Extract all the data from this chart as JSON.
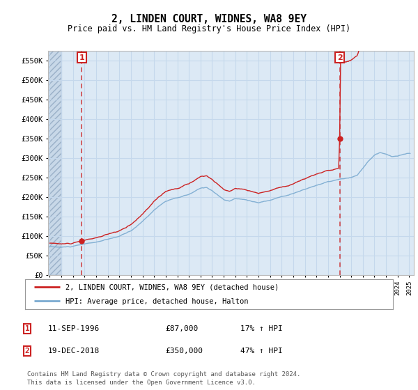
{
  "title": "2, LINDEN COURT, WIDNES, WA8 9EY",
  "subtitle": "Price paid vs. HM Land Registry's House Price Index (HPI)",
  "background_color": "#ffffff",
  "plot_bg_color": "#dce9f5",
  "grid_color": "#c5d8ec",
  "property_color": "#cc2222",
  "hpi_color": "#7aaad0",
  "point1_year": 1996.75,
  "point1_price": 87000,
  "point2_year": 2019.0,
  "point2_price": 350000,
  "ylim": [
    0,
    575000
  ],
  "yticks": [
    0,
    50000,
    100000,
    150000,
    200000,
    250000,
    300000,
    350000,
    400000,
    450000,
    500000,
    550000
  ],
  "ytick_labels": [
    "£0",
    "£50K",
    "£100K",
    "£150K",
    "£200K",
    "£250K",
    "£300K",
    "£350K",
    "£400K",
    "£450K",
    "£500K",
    "£550K"
  ],
  "legend_line1": "2, LINDEN COURT, WIDNES, WA8 9EY (detached house)",
  "legend_line2": "HPI: Average price, detached house, Halton",
  "footer1": "Contains HM Land Registry data © Crown copyright and database right 2024.",
  "footer2": "This data is licensed under the Open Government Licence v3.0.",
  "table_row1": [
    "1",
    "11-SEP-1996",
    "£87,000",
    "17% ↑ HPI"
  ],
  "table_row2": [
    "2",
    "19-DEC-2018",
    "£350,000",
    "47% ↑ HPI"
  ]
}
